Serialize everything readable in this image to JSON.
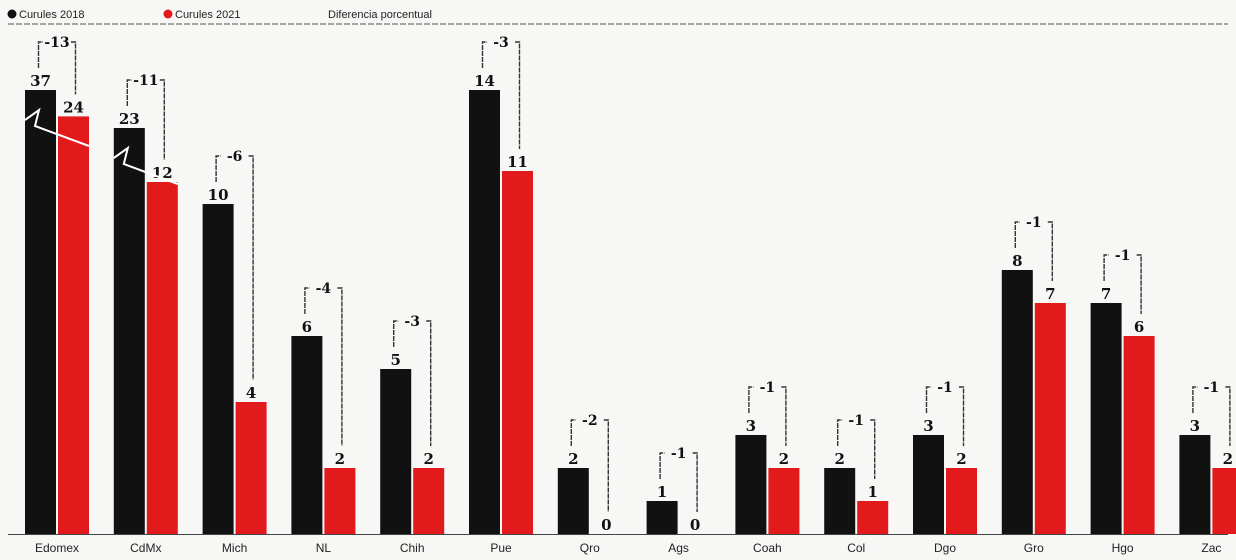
{
  "legend": {
    "item_2018": "Curules 2018",
    "item_2021": "Curules 2021",
    "item_diff": "Diferencia porcentual"
  },
  "colors": {
    "series_2018": "#111111",
    "series_2021": "#e31a1c",
    "bracket": "#333333",
    "background": "#f7f7f5"
  },
  "chart_data": {
    "type": "bar",
    "categories": [
      "Edomex",
      "CdMx",
      "Mich",
      "NL",
      "Chih",
      "Pue",
      "Qro",
      "Ags",
      "Coah",
      "Col",
      "Dgo",
      "Gro",
      "Hgo",
      "Zac"
    ],
    "series": [
      {
        "name": "Curules 2018",
        "values": [
          37,
          23,
          10,
          6,
          5,
          14,
          2,
          1,
          3,
          2,
          3,
          8,
          7,
          3
        ]
      },
      {
        "name": "Curules 2021",
        "values": [
          24,
          12,
          4,
          2,
          2,
          11,
          0,
          0,
          2,
          1,
          2,
          7,
          6,
          2
        ]
      }
    ],
    "differences": [
      "-13",
      "-11",
      "-6",
      "-4",
      "-3",
      "-3",
      "-2",
      "-1",
      "-1",
      "-1",
      "-1",
      "-1",
      "-1",
      "-1"
    ],
    "broken_axis_categories": [
      "Edomex",
      "CdMx"
    ],
    "title": "",
    "xlabel": "",
    "ylabel": ""
  }
}
